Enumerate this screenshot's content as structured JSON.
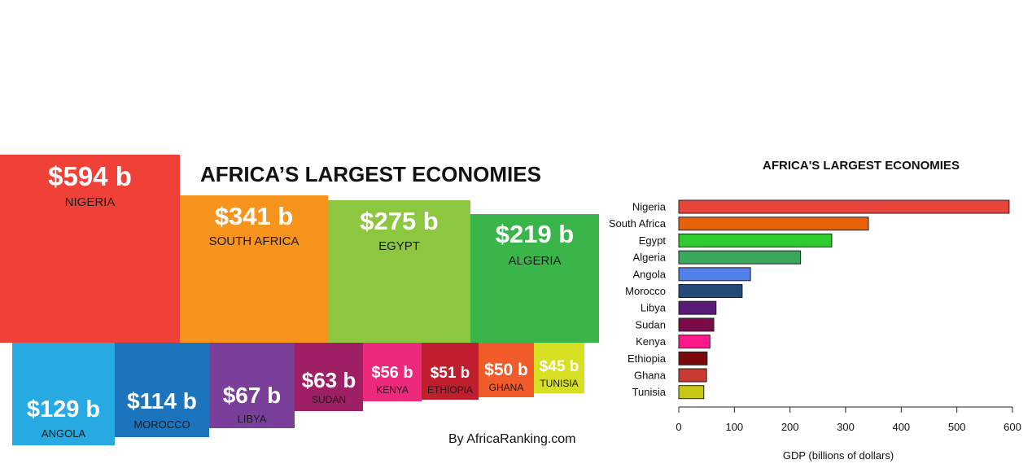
{
  "treemap": {
    "title": "AFRICA’S LARGEST ECONOMIES",
    "credit": "By AfricaRanking.com",
    "tiles": [
      {
        "value_label": "$594 b",
        "name": "NIGERIA",
        "color": "#ef4137"
      },
      {
        "value_label": "$341 b",
        "name": "SOUTH AFRICA",
        "color": "#f7941d"
      },
      {
        "value_label": "$275 b",
        "name": "EGYPT",
        "color": "#8dc63f"
      },
      {
        "value_label": "$219 b",
        "name": "ALGERIA",
        "color": "#39b54a"
      },
      {
        "value_label": "$129 b",
        "name": "ANGOLA",
        "color": "#27aae1"
      },
      {
        "value_label": "$114 b",
        "name": "MOROCCO",
        "color": "#1c75bc"
      },
      {
        "value_label": "$67 b",
        "name": "LIBYA",
        "color": "#7a3f9a"
      },
      {
        "value_label": "$63 b",
        "name": "SUDAN",
        "color": "#9e1f63"
      },
      {
        "value_label": "$56 b",
        "name": "KENYA",
        "color": "#ec297b"
      },
      {
        "value_label": "$51 b",
        "name": "ETHIOPIA",
        "color": "#be1e2d"
      },
      {
        "value_label": "$50 b",
        "name": "GHANA",
        "color": "#f15a29"
      },
      {
        "value_label": "$45 b",
        "name": "TUNISIA",
        "color": "#d7df23"
      }
    ]
  },
  "chart_data": {
    "type": "bar",
    "orientation": "horizontal",
    "title": "AFRICA'S LARGEST ECONOMIES",
    "xlabel": "GDP (billions of dollars)",
    "ylabel": "",
    "categories": [
      "Nigeria",
      "South Africa",
      "Egypt",
      "Algeria",
      "Angola",
      "Morocco",
      "Libya",
      "Sudan",
      "Kenya",
      "Ethiopia",
      "Ghana",
      "Tunisia"
    ],
    "values": [
      594,
      341,
      275,
      219,
      129,
      114,
      67,
      63,
      56,
      51,
      50,
      45
    ],
    "colors": [
      "#e8453c",
      "#e8600a",
      "#2ecc2e",
      "#3aa85c",
      "#5080e8",
      "#234a78",
      "#5a1a7a",
      "#7a0a48",
      "#ff1a8c",
      "#7a0a0a",
      "#c83a32",
      "#c8c814"
    ],
    "xlim": [
      0,
      600
    ],
    "xticks": [
      0,
      100,
      200,
      300,
      400,
      500,
      600
    ],
    "grid": false
  }
}
